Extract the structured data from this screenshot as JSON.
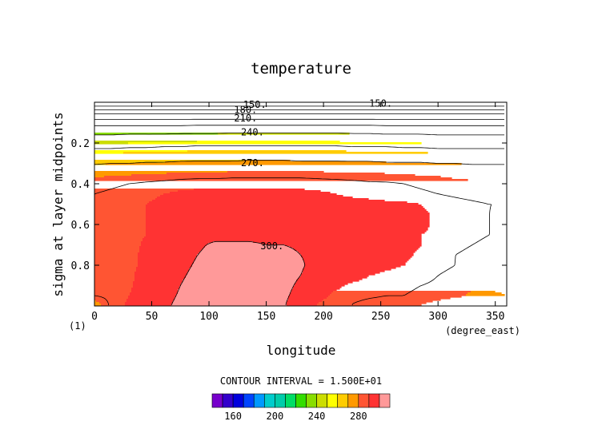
{
  "chart_data": {
    "type": "heatmap",
    "title": "temperature",
    "xlabel": "longitude",
    "ylabel": "sigma at layer midpoints",
    "x_units": "(degree_east)",
    "panel_label": "(1)",
    "xlim": [
      0,
      360
    ],
    "ylim": [
      1.0,
      0.0
    ],
    "y_reversed": true,
    "x_ticks": [
      0,
      50,
      100,
      150,
      200,
      250,
      300,
      350
    ],
    "y_ticks": [
      0.2,
      0.4,
      0.6,
      0.8
    ],
    "contour_interval_text": "CONTOUR INTERVAL = 1.500E+01",
    "levels": [
      150,
      160,
      170,
      180,
      190,
      200,
      210,
      220,
      230,
      240,
      250,
      260,
      270,
      280,
      290,
      300
    ],
    "level_colors": [
      "#7700cc",
      "#3300cc",
      "#0000dd",
      "#0044ff",
      "#0099ff",
      "#00cccc",
      "#00ccaa",
      "#00dd66",
      "#33dd00",
      "#88dd00",
      "#ccdd00",
      "#ffff00",
      "#ffcc00",
      "#ff9900",
      "#ff5533",
      "#ff3333",
      "#ff9999",
      "#ffffff"
    ],
    "colorbar_ticks": [
      160,
      200,
      240,
      280
    ],
    "contour_labels": [
      {
        "text": "150.",
        "lon": 140,
        "sigma": 0.012
      },
      {
        "text": "150.",
        "lon": 250,
        "sigma": 0.005
      },
      {
        "text": "180.",
        "lon": 132,
        "sigma": 0.038
      },
      {
        "text": "210.",
        "lon": 132,
        "sigma": 0.078
      },
      {
        "text": "240.",
        "lon": 138,
        "sigma": 0.148
      },
      {
        "text": "270.",
        "lon": 138,
        "sigma": 0.298
      },
      {
        "text": "300.",
        "lon": 155,
        "sigma": 0.705
      }
    ],
    "temperature_grid": {
      "lon": [
        0,
        15,
        30,
        45,
        60,
        75,
        90,
        105,
        120,
        135,
        150,
        165,
        180,
        195,
        210,
        225,
        240,
        255,
        270,
        285,
        300,
        315,
        330,
        345,
        360
      ],
      "sigma": [
        0.005,
        0.015,
        0.025,
        0.04,
        0.06,
        0.08,
        0.1,
        0.13,
        0.16,
        0.2,
        0.25,
        0.3,
        0.35,
        0.4,
        0.45,
        0.5,
        0.55,
        0.6,
        0.65,
        0.7,
        0.75,
        0.8,
        0.85,
        0.9,
        0.95,
        0.99
      ],
      "values": [
        [
          150,
          150,
          150,
          150,
          150,
          150,
          150,
          150,
          150,
          150,
          150,
          150,
          150,
          150,
          150,
          150,
          150,
          150,
          150,
          150,
          150,
          150,
          150,
          150,
          150
        ],
        [
          160,
          160,
          160,
          160,
          160,
          160,
          160,
          160,
          160,
          160,
          160,
          160,
          160,
          160,
          160,
          160,
          160,
          160,
          160,
          160,
          160,
          160,
          160,
          160,
          160
        ],
        [
          172,
          172,
          172,
          172,
          172,
          172,
          172,
          172,
          172,
          172,
          172,
          172,
          172,
          172,
          172,
          172,
          172,
          172,
          172,
          172,
          172,
          172,
          172,
          172,
          172
        ],
        [
          182,
          182,
          182,
          182,
          182,
          182,
          182,
          182,
          182,
          182,
          182,
          182,
          182,
          182,
          182,
          182,
          182,
          182,
          182,
          182,
          182,
          182,
          182,
          182,
          182
        ],
        [
          198,
          198,
          198,
          198,
          198,
          198,
          198,
          198,
          198,
          198,
          198,
          198,
          198,
          198,
          198,
          198,
          198,
          198,
          198,
          198,
          198,
          198,
          198,
          198,
          198
        ],
        [
          208,
          208,
          208,
          208,
          208,
          208,
          208,
          208,
          208,
          208,
          208,
          208,
          208,
          208,
          208,
          208,
          208,
          208,
          208,
          208,
          208,
          208,
          208,
          208,
          208
        ],
        [
          218,
          218,
          218,
          218,
          218,
          218,
          219,
          219,
          219,
          219,
          219,
          219,
          219,
          219,
          219,
          219,
          219,
          218,
          218,
          218,
          218,
          218,
          218,
          218,
          218
        ],
        [
          232,
          232,
          232,
          232,
          232,
          232,
          233,
          233,
          233,
          233,
          233,
          233,
          233,
          233,
          233,
          233,
          233,
          232,
          232,
          232,
          232,
          232,
          232,
          232,
          232
        ],
        [
          240,
          240,
          241,
          241,
          241,
          242,
          242,
          242,
          243,
          243,
          243,
          243,
          243,
          243,
          243,
          242,
          242,
          241,
          241,
          241,
          240,
          240,
          240,
          240,
          240
        ],
        [
          249,
          249,
          250,
          250,
          251,
          251,
          252,
          252,
          252,
          252,
          252,
          252,
          252,
          252,
          252,
          251,
          251,
          251,
          250,
          250,
          249,
          249,
          249,
          249,
          249
        ],
        [
          260,
          260,
          261,
          261,
          262,
          262,
          263,
          263,
          263,
          263,
          263,
          263,
          263,
          263,
          263,
          262,
          262,
          262,
          261,
          261,
          260,
          260,
          260,
          260,
          260
        ],
        [
          269,
          270,
          270,
          271,
          271,
          272,
          272,
          272,
          272,
          273,
          273,
          273,
          272,
          272,
          272,
          272,
          272,
          271,
          271,
          271,
          270,
          270,
          269,
          269,
          269
        ],
        [
          278,
          279,
          279,
          280,
          280,
          281,
          281,
          281,
          282,
          282,
          282,
          282,
          282,
          282,
          281,
          281,
          281,
          280,
          280,
          279,
          279,
          278,
          278,
          278,
          278
        ],
        [
          283,
          284,
          285,
          286,
          287,
          288,
          289,
          289,
          289,
          289,
          289,
          289,
          289,
          288,
          288,
          287,
          286,
          286,
          285,
          284,
          283,
          282,
          281,
          281,
          281
        ],
        [
          285,
          286,
          287,
          288,
          290,
          291,
          291,
          291,
          291,
          291,
          291,
          291,
          291,
          291,
          290,
          289,
          288,
          288,
          287,
          286,
          285,
          284,
          283,
          282,
          282
        ],
        [
          286,
          287,
          288,
          290,
          292,
          292,
          293,
          293,
          293,
          293,
          293,
          293,
          293,
          292,
          292,
          292,
          292,
          291,
          291,
          290,
          288,
          287,
          286,
          285,
          285
        ],
        [
          287,
          287,
          288,
          290,
          292,
          293,
          294,
          294,
          294,
          294,
          294,
          294,
          294,
          293,
          293,
          293,
          293,
          293,
          292,
          291,
          289,
          287,
          286,
          285,
          284
        ],
        [
          287,
          287,
          288,
          290,
          292,
          294,
          295,
          296,
          296,
          296,
          296,
          296,
          296,
          295,
          295,
          294,
          294,
          293,
          292,
          291,
          289,
          287,
          286,
          285,
          284
        ],
        [
          288,
          288,
          288,
          290,
          292,
          295,
          297,
          298,
          298,
          298,
          298,
          298,
          298,
          297,
          296,
          295,
          294,
          293,
          292,
          290,
          289,
          287,
          286,
          285,
          284
        ],
        [
          288,
          288,
          288,
          291,
          293,
          296,
          299,
          301,
          301,
          301,
          300,
          300,
          299,
          298,
          296,
          295,
          294,
          293,
          292,
          290,
          288,
          286,
          285,
          284,
          283
        ],
        [
          288,
          288,
          289,
          291,
          293,
          297,
          300,
          302,
          303,
          303,
          302,
          302,
          300,
          298,
          296,
          295,
          294,
          292,
          291,
          289,
          287,
          285,
          284,
          283,
          283
        ],
        [
          288,
          288,
          289,
          291,
          294,
          298,
          301,
          303,
          304,
          304,
          303,
          303,
          301,
          297,
          294,
          293,
          292,
          291,
          290,
          288,
          286,
          285,
          283,
          282,
          282
        ],
        [
          288,
          288,
          289,
          292,
          295,
          299,
          302,
          305,
          306,
          306,
          305,
          304,
          300,
          296,
          293,
          292,
          290,
          289,
          288,
          287,
          285,
          284,
          283,
          282,
          282
        ],
        [
          286,
          287,
          289,
          293,
          296,
          300,
          303,
          306,
          307,
          307,
          306,
          303,
          298,
          293,
          291,
          289,
          288,
          287,
          286,
          285,
          284,
          283,
          281,
          281,
          281
        ],
        [
          285,
          287,
          290,
          294,
          297,
          301,
          304,
          307,
          308,
          308,
          306,
          302,
          296,
          292,
          289,
          287,
          286,
          285,
          285,
          284,
          282,
          281,
          279,
          279,
          280
        ],
        [
          276,
          287,
          291,
          295,
          298,
          302,
          305,
          308,
          309,
          309,
          307,
          301,
          294,
          290,
          287,
          285,
          283,
          282,
          281,
          280,
          278,
          276,
          275,
          275,
          277
        ]
      ]
    }
  }
}
